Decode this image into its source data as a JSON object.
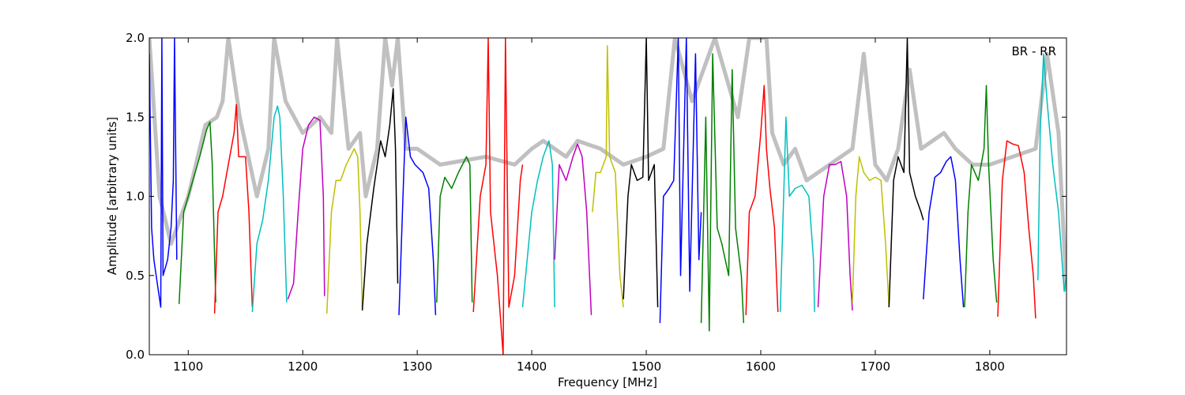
{
  "chart_data": {
    "type": "line",
    "annotation": "BR - RR",
    "xlabel": "Frequency [MHz]",
    "ylabel": "Amplitude [arbitrary units]",
    "xlim": [
      1066,
      1867
    ],
    "ylim": [
      0,
      2
    ],
    "xticks": [
      1100,
      1200,
      1300,
      1400,
      1500,
      1600,
      1700,
      1800
    ],
    "yticks": [
      {
        "value": 0,
        "label": "0.0"
      },
      0.5,
      {
        "value": 1,
        "label": "1.0"
      },
      1.5,
      {
        "value": 2,
        "label": "2.0"
      }
    ],
    "series": [
      {
        "color": "#c0c0c0",
        "x": [
          1066,
          1075,
          1085,
          1100,
          1115,
          1125,
          1130,
          1135,
          1145,
          1160,
          1170,
          1175,
          1185,
          1200,
          1215,
          1225,
          1230,
          1240,
          1250,
          1255,
          1265,
          1272,
          1278,
          1283,
          1290,
          1300,
          1320,
          1360,
          1385,
          1400,
          1410,
          1430,
          1440,
          1460,
          1480,
          1500,
          1515,
          1525,
          1540,
          1560,
          1580,
          1590,
          1605,
          1610,
          1620,
          1630,
          1640,
          1660,
          1680,
          1690,
          1700,
          1710,
          1720,
          1730,
          1740,
          1760,
          1770,
          1785,
          1800,
          1840,
          1850,
          1860,
          1867
        ],
        "values": [
          2.0,
          1.0,
          0.7,
          1.0,
          1.45,
          1.5,
          1.6,
          2.0,
          1.5,
          1.0,
          1.3,
          2.0,
          1.6,
          1.4,
          1.5,
          1.4,
          2.0,
          1.3,
          1.4,
          1.0,
          1.3,
          2.0,
          1.7,
          2.0,
          1.3,
          1.3,
          1.2,
          1.25,
          1.2,
          1.3,
          1.35,
          1.25,
          1.35,
          1.3,
          1.2,
          1.25,
          1.3,
          2.0,
          1.6,
          2.0,
          1.5,
          2.0,
          2.0,
          1.4,
          1.2,
          1.3,
          1.1,
          1.2,
          1.3,
          1.9,
          1.2,
          1.1,
          1.3,
          1.8,
          1.3,
          1.4,
          1.3,
          1.2,
          1.2,
          1.3,
          1.9,
          1.4,
          0.4
        ]
      },
      {
        "color": "#0000ff",
        "x": [
          1066,
          1068,
          1070,
          1073,
          1076,
          1077,
          1078,
          1082,
          1085,
          1087,
          1088,
          1090
        ],
        "values": [
          1.9,
          0.8,
          0.6,
          0.45,
          0.3,
          2.0,
          0.5,
          0.6,
          0.8,
          1.1,
          2.0,
          0.6
        ]
      },
      {
        "color": "#008000",
        "x": [
          1092,
          1096,
          1100,
          1106,
          1110,
          1116,
          1119,
          1121,
          1124
        ],
        "values": [
          0.32,
          0.9,
          1.0,
          1.15,
          1.25,
          1.42,
          1.47,
          1.2,
          0.33
        ]
      },
      {
        "color": "#ff0000",
        "x": [
          1123,
          1126,
          1130,
          1135,
          1140,
          1142,
          1144,
          1150,
          1153,
          1156
        ],
        "values": [
          0.26,
          0.9,
          1.0,
          1.2,
          1.4,
          1.58,
          1.25,
          1.25,
          0.9,
          0.3
        ]
      },
      {
        "color": "#00bfbf",
        "x": [
          1156,
          1160,
          1165,
          1170,
          1175,
          1178,
          1180,
          1183,
          1186
        ],
        "values": [
          0.27,
          0.7,
          0.85,
          1.1,
          1.5,
          1.57,
          1.5,
          1.0,
          0.33
        ]
      },
      {
        "color": "#bf00bf",
        "x": [
          1187,
          1192,
          1196,
          1200,
          1205,
          1210,
          1215,
          1218,
          1219
        ],
        "values": [
          0.35,
          0.45,
          0.9,
          1.3,
          1.45,
          1.5,
          1.48,
          1.0,
          0.37
        ]
      },
      {
        "color": "#bfbf00",
        "x": [
          1221,
          1225,
          1229,
          1233,
          1238,
          1245,
          1248,
          1250,
          1252
        ],
        "values": [
          0.26,
          0.9,
          1.1,
          1.1,
          1.2,
          1.3,
          1.25,
          0.9,
          0.28
        ]
      },
      {
        "color": "#000000",
        "x": [
          1252,
          1256,
          1262,
          1268,
          1272,
          1276,
          1279,
          1281,
          1283
        ],
        "values": [
          0.28,
          0.7,
          1.05,
          1.35,
          1.25,
          1.45,
          1.68,
          1.3,
          0.45
        ]
      },
      {
        "color": "#0000ff",
        "x": [
          1284,
          1288,
          1290,
          1294,
          1298,
          1305,
          1310,
          1314,
          1316
        ],
        "values": [
          0.25,
          1.1,
          1.5,
          1.25,
          1.2,
          1.15,
          1.05,
          0.6,
          0.25
        ]
      },
      {
        "color": "#008000",
        "x": [
          1317,
          1320,
          1324,
          1330,
          1336,
          1343,
          1346,
          1348
        ],
        "values": [
          0.33,
          1.0,
          1.12,
          1.05,
          1.15,
          1.25,
          1.2,
          0.33
        ]
      },
      {
        "color": "#ff0000",
        "x": [
          1349,
          1355,
          1360,
          1362,
          1364,
          1370,
          1375,
          1377,
          1380,
          1385,
          1390,
          1392
        ],
        "values": [
          0.27,
          1.0,
          1.2,
          2.0,
          0.9,
          0.5,
          0.0,
          2.0,
          0.3,
          0.5,
          1.1,
          1.2
        ]
      },
      {
        "color": "#00bfbf",
        "x": [
          1392,
          1396,
          1400,
          1405,
          1410,
          1415,
          1418,
          1420
        ],
        "values": [
          0.3,
          0.6,
          0.9,
          1.1,
          1.25,
          1.35,
          1.2,
          0.3
        ]
      },
      {
        "color": "#bf00bf",
        "x": [
          1420,
          1424,
          1430,
          1436,
          1440,
          1444,
          1448,
          1452
        ],
        "values": [
          0.6,
          1.2,
          1.1,
          1.25,
          1.33,
          1.25,
          0.9,
          0.25
        ]
      },
      {
        "color": "#bfbf00",
        "x": [
          1453,
          1456,
          1460,
          1465,
          1466,
          1468,
          1473,
          1477,
          1480
        ],
        "values": [
          0.9,
          1.15,
          1.15,
          1.25,
          1.95,
          1.25,
          1.15,
          0.5,
          0.3
        ]
      },
      {
        "color": "#000000",
        "x": [
          1480,
          1484,
          1487,
          1492,
          1497,
          1500,
          1502,
          1507,
          1510
        ],
        "values": [
          0.35,
          1.0,
          1.2,
          1.1,
          1.12,
          2.0,
          1.1,
          1.2,
          0.3
        ]
      },
      {
        "color": "#0000ff",
        "x": [
          1512,
          1515,
          1520,
          1524,
          1528,
          1530,
          1535,
          1538,
          1543,
          1546,
          1548
        ],
        "values": [
          0.2,
          1.0,
          1.05,
          1.1,
          2.0,
          0.5,
          2.0,
          0.4,
          1.9,
          0.6,
          0.9
        ]
      },
      {
        "color": "#008000",
        "x": [
          1548,
          1552,
          1555,
          1558,
          1562,
          1566,
          1572,
          1575,
          1578,
          1583,
          1585
        ],
        "values": [
          0.2,
          1.5,
          0.15,
          1.9,
          0.8,
          0.7,
          0.5,
          1.8,
          0.8,
          0.5,
          0.2
        ]
      },
      {
        "color": "#ff0000",
        "x": [
          1587,
          1590,
          1595,
          1600,
          1603,
          1605,
          1608,
          1612,
          1615
        ],
        "values": [
          0.25,
          0.9,
          1.0,
          1.4,
          1.7,
          1.3,
          1.05,
          0.8,
          0.27
        ]
      },
      {
        "color": "#00bfbf",
        "x": [
          1617,
          1620,
          1622,
          1625,
          1630,
          1636,
          1642,
          1646,
          1647
        ],
        "values": [
          0.27,
          1.0,
          1.5,
          1.0,
          1.05,
          1.07,
          1.0,
          0.6,
          0.27
        ]
      },
      {
        "color": "#bf00bf",
        "x": [
          1650,
          1655,
          1660,
          1665,
          1670,
          1675,
          1678,
          1680
        ],
        "values": [
          0.3,
          1.0,
          1.2,
          1.2,
          1.22,
          1.0,
          0.5,
          0.28
        ]
      },
      {
        "color": "#bfbf00",
        "x": [
          1680,
          1683,
          1686,
          1690,
          1695,
          1700,
          1705,
          1709,
          1712
        ],
        "values": [
          0.33,
          1.0,
          1.25,
          1.15,
          1.1,
          1.12,
          1.1,
          0.7,
          0.3
        ]
      },
      {
        "color": "#000000",
        "x": [
          1712,
          1716,
          1720,
          1725,
          1728,
          1730,
          1735,
          1740,
          1742
        ],
        "values": [
          0.3,
          1.1,
          1.25,
          1.15,
          2.0,
          1.15,
          1.0,
          0.9,
          0.85
        ]
      },
      {
        "color": "#0000ff",
        "x": [
          1742,
          1747,
          1752,
          1757,
          1762,
          1766,
          1770,
          1774,
          1777
        ],
        "values": [
          0.35,
          0.9,
          1.12,
          1.15,
          1.22,
          1.25,
          1.1,
          0.6,
          0.3
        ]
      },
      {
        "color": "#008000",
        "x": [
          1778,
          1781,
          1784,
          1790,
          1795,
          1797,
          1799,
          1803,
          1806
        ],
        "values": [
          0.3,
          0.9,
          1.2,
          1.1,
          1.3,
          1.7,
          1.2,
          0.6,
          0.33
        ]
      },
      {
        "color": "#ff0000",
        "x": [
          1807,
          1811,
          1815,
          1820,
          1825,
          1830,
          1834,
          1838,
          1840
        ],
        "values": [
          0.24,
          1.1,
          1.35,
          1.33,
          1.32,
          1.15,
          0.8,
          0.5,
          0.23
        ]
      },
      {
        "color": "#00bfbf",
        "x": [
          1842,
          1844,
          1847,
          1850,
          1855,
          1860,
          1865,
          1867
        ],
        "values": [
          0.47,
          1.4,
          1.9,
          1.6,
          1.2,
          0.9,
          0.4,
          0.5
        ]
      }
    ]
  }
}
